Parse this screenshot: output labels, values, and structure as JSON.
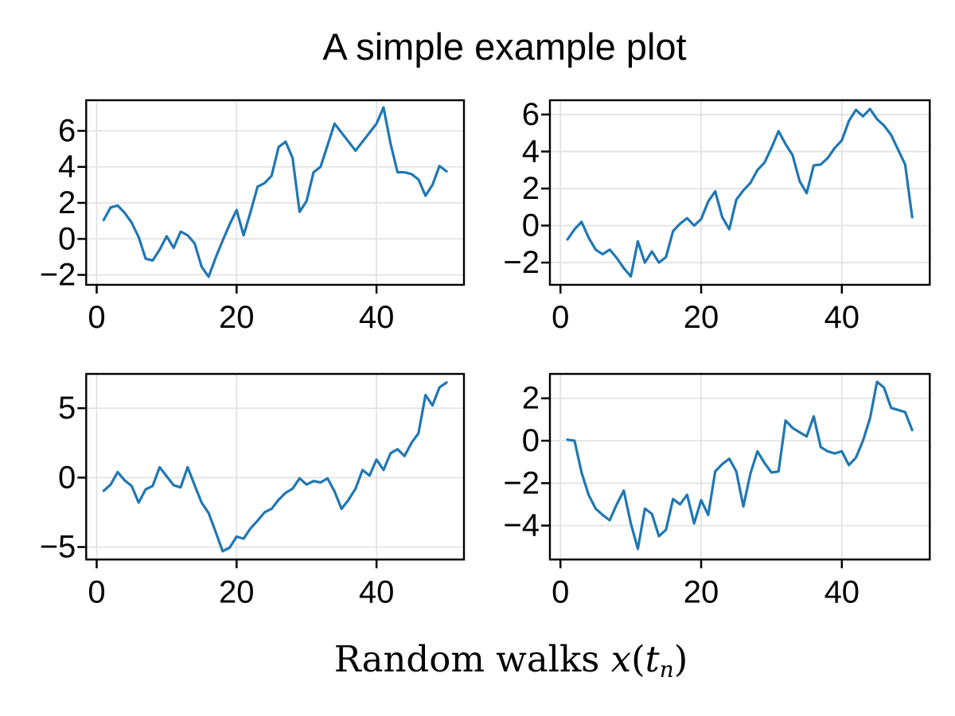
{
  "figure": {
    "title": "A simple example plot",
    "xlabel": {
      "prefix": "Random walks ",
      "var": "x",
      "open": "(",
      "tvar": "t",
      "sub": "n",
      "close": ")"
    },
    "background": "#ffffff",
    "text_color": "#000000"
  },
  "chart_data": {
    "type": "line",
    "title": "A simple example plot",
    "xlabel": "Random walks x(t_n)",
    "layout": "2x2 grid of subplots, grid on, no legend, shared x sample index 1..50",
    "line_color": "#1f77b4",
    "grid_color": "#e3e3e3",
    "spine_color": "#000000",
    "xlim": [
      -1.5,
      52.5
    ],
    "xticks": [
      0,
      20,
      40
    ],
    "subplots": [
      {
        "position": "top-left",
        "x_range": [
          1,
          50
        ],
        "yticks": [
          -2,
          0,
          2,
          4,
          6
        ],
        "ylim": [
          -2.55,
          7.7
        ],
        "values": [
          1.05,
          1.75,
          1.85,
          1.45,
          0.9,
          0.1,
          -1.1,
          -1.2,
          -0.6,
          0.15,
          -0.5,
          0.4,
          0.2,
          -0.25,
          -1.55,
          -2.1,
          -1.05,
          -0.1,
          0.8,
          1.6,
          0.2,
          1.5,
          2.9,
          3.1,
          3.5,
          5.1,
          5.4,
          4.5,
          1.5,
          2.1,
          3.7,
          4.0,
          5.2,
          6.4,
          5.9,
          5.4,
          4.9,
          5.4,
          5.9,
          6.4,
          7.3,
          5.3,
          3.7,
          3.7,
          3.6,
          3.3,
          2.4,
          3.0,
          4.05,
          3.75
        ]
      },
      {
        "position": "top-right",
        "x_range": [
          1,
          50
        ],
        "yticks": [
          -2,
          0,
          2,
          4,
          6
        ],
        "ylim": [
          -3.2,
          6.77
        ],
        "values": [
          -0.75,
          -0.2,
          0.2,
          -0.65,
          -1.3,
          -1.55,
          -1.3,
          -1.75,
          -2.3,
          -2.75,
          -0.85,
          -2.0,
          -1.4,
          -2.0,
          -1.7,
          -0.3,
          0.1,
          0.4,
          0.0,
          0.35,
          1.3,
          1.85,
          0.45,
          -0.2,
          1.4,
          1.9,
          2.3,
          3.0,
          3.4,
          4.2,
          5.1,
          4.4,
          3.8,
          2.4,
          1.75,
          3.25,
          3.3,
          3.65,
          4.2,
          4.6,
          5.65,
          6.25,
          5.9,
          6.3,
          5.75,
          5.4,
          4.9,
          4.1,
          3.3,
          0.45
        ]
      },
      {
        "position": "bottom-left",
        "x_range": [
          1,
          50
        ],
        "yticks": [
          -5,
          0,
          5
        ],
        "ylim": [
          -5.9,
          7.47
        ],
        "values": [
          -0.95,
          -0.5,
          0.4,
          -0.2,
          -0.6,
          -1.8,
          -0.85,
          -0.6,
          0.75,
          0.1,
          -0.55,
          -0.7,
          0.75,
          -0.55,
          -1.8,
          -2.55,
          -3.9,
          -5.3,
          -5.05,
          -4.25,
          -4.4,
          -3.65,
          -3.1,
          -2.5,
          -2.25,
          -1.6,
          -1.1,
          -0.8,
          -0.05,
          -0.5,
          -0.25,
          -0.35,
          -0.05,
          -1.0,
          -2.25,
          -1.6,
          -0.8,
          0.55,
          0.15,
          1.3,
          0.55,
          1.75,
          2.05,
          1.55,
          2.5,
          3.2,
          5.95,
          5.2,
          6.5,
          6.85
        ]
      },
      {
        "position": "bottom-right",
        "x_range": [
          1,
          50
        ],
        "yticks": [
          -4,
          -2,
          0,
          2
        ],
        "ylim": [
          -5.6,
          3.15
        ],
        "values": [
          0.05,
          0.0,
          -1.5,
          -2.55,
          -3.2,
          -3.5,
          -3.75,
          -3.0,
          -2.35,
          -3.9,
          -5.1,
          -3.2,
          -3.45,
          -4.5,
          -4.2,
          -2.75,
          -3.0,
          -2.55,
          -3.9,
          -2.8,
          -3.5,
          -1.45,
          -1.1,
          -0.85,
          -1.45,
          -3.1,
          -1.55,
          -0.5,
          -1.05,
          -1.5,
          -1.45,
          0.95,
          0.6,
          0.4,
          0.2,
          1.15,
          -0.3,
          -0.5,
          -0.6,
          -0.5,
          -1.15,
          -0.8,
          0.0,
          1.05,
          2.78,
          2.5,
          1.55,
          1.45,
          1.35,
          0.5
        ]
      }
    ]
  }
}
